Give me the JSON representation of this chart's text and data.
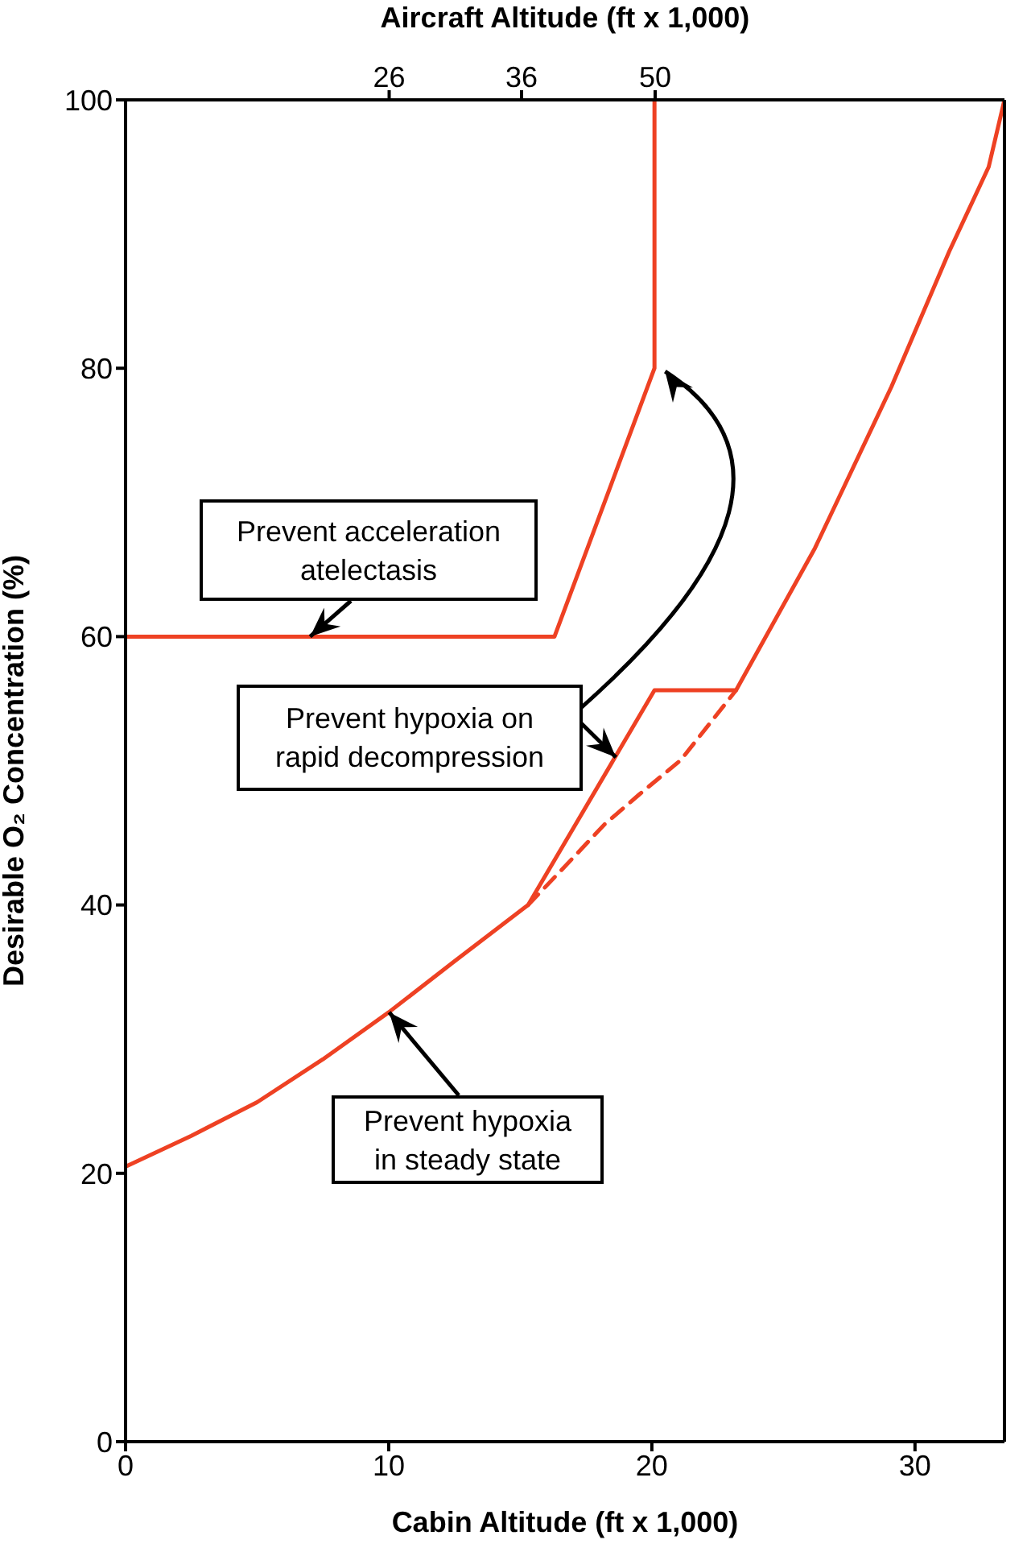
{
  "chart_data": {
    "type": "line",
    "xlabel": "Cabin Altitude  (ft x 1,000)",
    "ylabel": "Desirable O₂ Concentration (%)",
    "x2label": "Aircraft Altitude (ft x 1,000)",
    "xlim": [
      0,
      33.4
    ],
    "xticks": [
      0,
      10,
      20,
      30
    ],
    "ylim": [
      0,
      100
    ],
    "yticks": [
      0,
      20,
      40,
      60,
      80,
      100
    ],
    "x2lim": [
      13.6,
      118
    ],
    "x2ticks": [
      26,
      36,
      50
    ],
    "log": "x2",
    "series": [
      {
        "color": "#ee4123",
        "x": [
          0,
          2.5,
          5,
          7.5,
          10,
          12.5,
          15.3,
          20.1,
          23.2,
          26.2,
          29.1,
          31.3,
          32.8,
          33.4
        ],
        "values": [
          20.5,
          22.8,
          25.3,
          28.5,
          32,
          35.8,
          40,
          56,
          56,
          66.6,
          78.6,
          88.7,
          95,
          100
        ]
      },
      {
        "color": "#ee4123",
        "line_style": "dashed",
        "x": [
          15.3,
          17,
          18.2,
          19.5,
          21.1,
          23.2
        ],
        "values": [
          40,
          43.5,
          46,
          48.2,
          50.8,
          56
        ]
      },
      {
        "color": "#ee4123",
        "x": [
          0,
          16.3,
          20.1,
          20.1
        ],
        "values": [
          60,
          60,
          80,
          100
        ]
      }
    ],
    "annotations": [
      {
        "text": "Prevent acceleration\natelectasis",
        "x": 7,
        "y": 60
      },
      {
        "text": "Prevent hypoxia on\nrapid decompression",
        "x": 18.6,
        "y": 51
      },
      {
        "text": "Prevent hypoxia\nin steady state",
        "x": 10,
        "y": 32
      }
    ]
  }
}
